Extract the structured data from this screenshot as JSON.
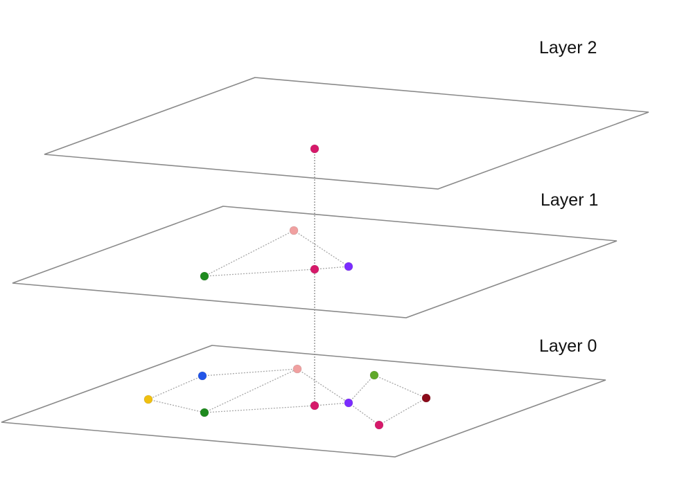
{
  "layers": [
    {
      "id": "layer-2",
      "label": "Layer 2"
    },
    {
      "id": "layer-1",
      "label": "Layer 1"
    },
    {
      "id": "layer-0",
      "label": "Layer 0"
    }
  ],
  "node_colors": {
    "magenta": "#d6196a",
    "pink": "#f0a0a0",
    "violet": "#7b2cff",
    "green": "#1e8a1e",
    "blue": "#2255e8",
    "yellow": "#f0c010",
    "olive_green": "#5fa82a",
    "dark_red": "#8b0a1a"
  },
  "graph": {
    "layer_2": {
      "nodes": [
        "magenta"
      ],
      "edges": []
    },
    "layer_1": {
      "nodes": [
        "pink",
        "magenta",
        "violet",
        "green"
      ],
      "edges": [
        [
          "pink",
          "green"
        ],
        [
          "pink",
          "violet"
        ],
        [
          "green",
          "magenta"
        ],
        [
          "magenta",
          "violet"
        ]
      ]
    },
    "layer_0": {
      "nodes": [
        "blue",
        "pink",
        "yellow",
        "green",
        "magenta",
        "violet",
        "olive_green",
        "dark_red",
        "magenta_2"
      ],
      "edges": [
        [
          "blue",
          "pink"
        ],
        [
          "blue",
          "yellow"
        ],
        [
          "yellow",
          "green"
        ],
        [
          "green",
          "pink"
        ],
        [
          "green",
          "magenta"
        ],
        [
          "pink",
          "violet"
        ],
        [
          "magenta",
          "violet"
        ],
        [
          "violet",
          "olive_green"
        ],
        [
          "olive_green",
          "dark_red"
        ],
        [
          "violet",
          "magenta_2"
        ],
        [
          "magenta_2",
          "dark_red"
        ]
      ]
    },
    "inter_layer_link": "magenta"
  }
}
